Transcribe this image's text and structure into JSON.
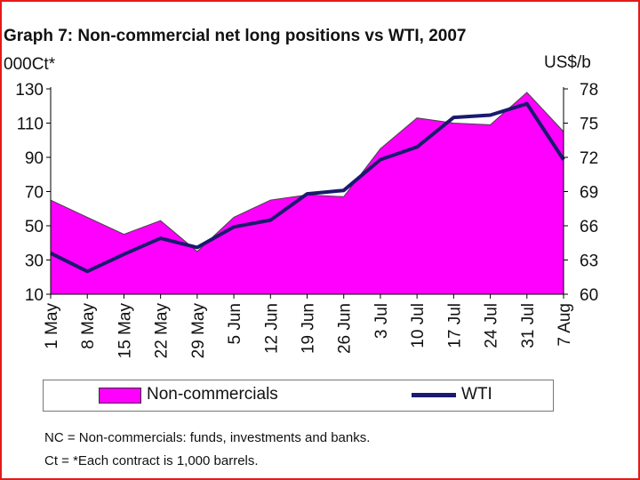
{
  "chart_data": {
    "type": "area",
    "title": "Graph 7: Non-commercial net long positions vs WTI, 2007",
    "left_axis_label": "000Ct*",
    "right_axis_label": "US$/b",
    "categories": [
      "1 May",
      "8 May",
      "15 May",
      "22 May",
      "29 May",
      "5 Jun",
      "12 Jun",
      "19 Jun",
      "26 Jun",
      "3 Jul",
      "10 Jul",
      "17 Jul",
      "24 Jul",
      "31 Jul",
      "7 Aug"
    ],
    "left_ticks": [
      "130",
      "110",
      "90",
      "70",
      "50",
      "30",
      "10"
    ],
    "right_ticks": [
      "78",
      "75",
      "72",
      "69",
      "66",
      "63",
      "60"
    ],
    "ylim_left": [
      10,
      130
    ],
    "ylim_right": [
      60,
      78
    ],
    "series": [
      {
        "name": "Non-commercials",
        "axis": "left",
        "style": "area",
        "color": "#ff00ff",
        "values": [
          65,
          55,
          45,
          53,
          35,
          55,
          65,
          68,
          67,
          95,
          113,
          110,
          109,
          128,
          105
        ]
      },
      {
        "name": "WTI",
        "axis": "right",
        "style": "line",
        "color": "#1a1a6e",
        "values": [
          63.6,
          62.0,
          63.5,
          64.9,
          64.1,
          65.9,
          66.5,
          68.8,
          69.1,
          71.8,
          72.9,
          75.5,
          75.7,
          76.7,
          71.8
        ]
      }
    ]
  },
  "legend": {
    "nc_label": "Non-commercials",
    "wti_label": "WTI"
  },
  "notes": [
    "NC = Non-commercials: funds, investments and banks.",
    "Ct = *Each contract is 1,000 barrels."
  ]
}
